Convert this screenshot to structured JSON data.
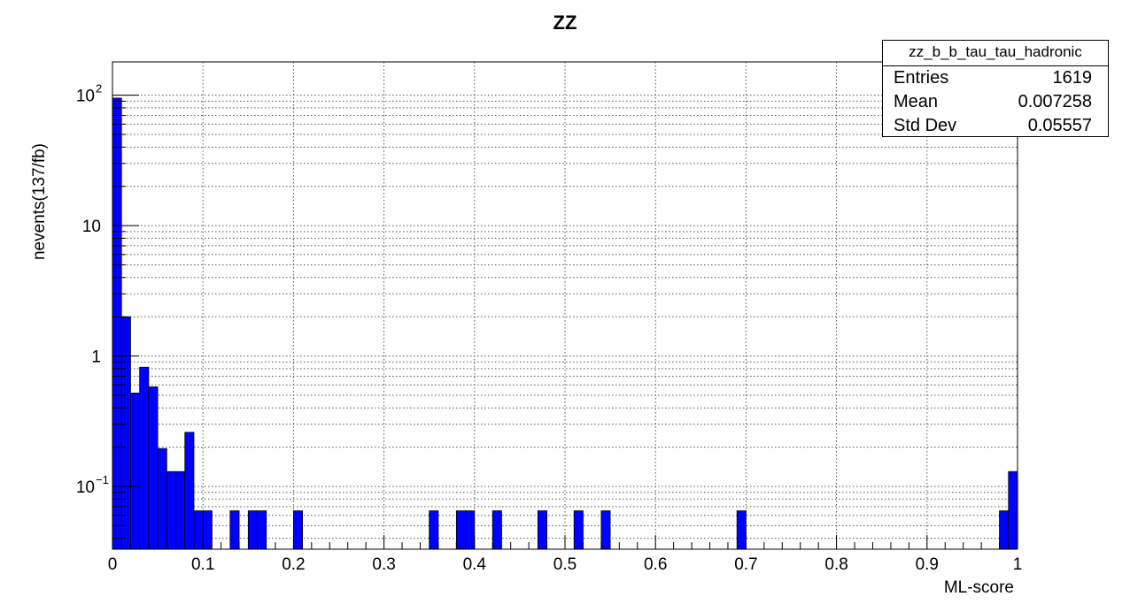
{
  "chart_data": {
    "type": "bar",
    "title": "ZZ",
    "xlabel": "ML-score",
    "ylabel": "nevents(137/fb)",
    "xlim": [
      0,
      1
    ],
    "ylim": [
      0.033,
      180
    ],
    "yscale": "log",
    "grid": true,
    "bar_color": "#0000ff",
    "bin_width": 0.01,
    "x_ticks": [
      "0",
      "0.1",
      "0.2",
      "0.3",
      "0.4",
      "0.5",
      "0.6",
      "0.7",
      "0.8",
      "0.9",
      "1"
    ],
    "y_ticks": [
      {
        "value": 0.1,
        "base": "10",
        "exp": "−1"
      },
      {
        "value": 1,
        "base": "1",
        "exp": ""
      },
      {
        "value": 10,
        "base": "10",
        "exp": ""
      },
      {
        "value": 100,
        "base": "10",
        "exp": "2"
      }
    ],
    "bins": [
      {
        "x": 0.0,
        "y": 95
      },
      {
        "x": 0.01,
        "y": 2.0
      },
      {
        "x": 0.02,
        "y": 0.52
      },
      {
        "x": 0.03,
        "y": 0.82
      },
      {
        "x": 0.04,
        "y": 0.58
      },
      {
        "x": 0.05,
        "y": 0.195
      },
      {
        "x": 0.06,
        "y": 0.13
      },
      {
        "x": 0.07,
        "y": 0.13
      },
      {
        "x": 0.08,
        "y": 0.26
      },
      {
        "x": 0.09,
        "y": 0.065
      },
      {
        "x": 0.1,
        "y": 0.065
      },
      {
        "x": 0.13,
        "y": 0.065
      },
      {
        "x": 0.15,
        "y": 0.065
      },
      {
        "x": 0.16,
        "y": 0.065
      },
      {
        "x": 0.2,
        "y": 0.065
      },
      {
        "x": 0.35,
        "y": 0.065
      },
      {
        "x": 0.38,
        "y": 0.065
      },
      {
        "x": 0.39,
        "y": 0.065
      },
      {
        "x": 0.42,
        "y": 0.065
      },
      {
        "x": 0.47,
        "y": 0.065
      },
      {
        "x": 0.51,
        "y": 0.065
      },
      {
        "x": 0.54,
        "y": 0.065
      },
      {
        "x": 0.69,
        "y": 0.065
      },
      {
        "x": 0.98,
        "y": 0.065
      },
      {
        "x": 0.99,
        "y": 0.13
      }
    ]
  },
  "stats": {
    "name": "zz_b_b_tau_tau_hadronic",
    "entries_label": "Entries",
    "entries": "1619",
    "mean_label": "Mean",
    "mean": "0.007258",
    "std_label": "Std Dev",
    "std": "0.05557"
  }
}
